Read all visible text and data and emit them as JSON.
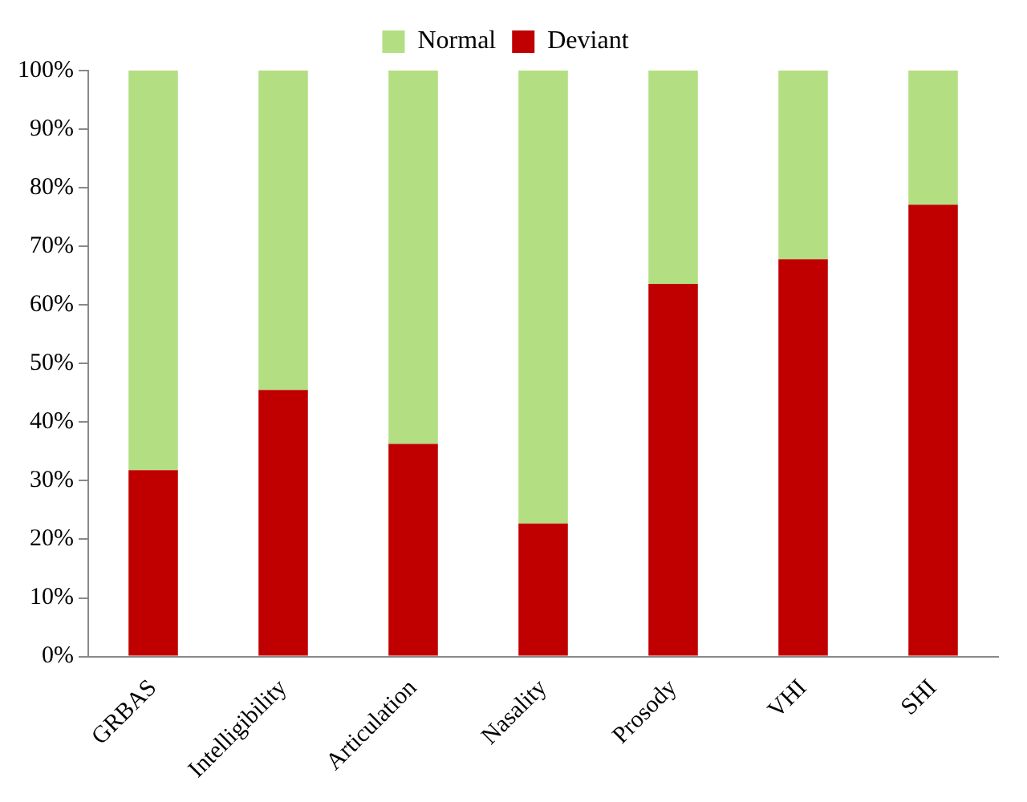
{
  "chart_data": {
    "type": "bar",
    "stacked": true,
    "categories": [
      "GRBAS",
      "Intelligibility",
      "Articulation",
      "Nasality",
      "Prosody",
      "VHI",
      "SHI"
    ],
    "series": [
      {
        "name": "Deviant",
        "color": "#c00000",
        "values": [
          31.8,
          45.5,
          36.3,
          22.7,
          63.6,
          67.8,
          77.1
        ]
      },
      {
        "name": "Normal",
        "color": "#b3de82",
        "values": [
          68.2,
          54.5,
          63.7,
          77.3,
          36.4,
          32.2,
          22.9
        ]
      }
    ],
    "ylim": [
      0,
      100
    ],
    "yticks": [
      {
        "value": 0,
        "label": "0%"
      },
      {
        "value": 10,
        "label": "10%"
      },
      {
        "value": 20,
        "label": "20%"
      },
      {
        "value": 30,
        "label": "30%"
      },
      {
        "value": 40,
        "label": "40%"
      },
      {
        "value": 50,
        "label": "50%"
      },
      {
        "value": 60,
        "label": "60%"
      },
      {
        "value": 70,
        "label": "70%"
      },
      {
        "value": 80,
        "label": "80%"
      },
      {
        "value": 90,
        "label": "90%"
      },
      {
        "value": 100,
        "label": "100%"
      }
    ],
    "grid": false,
    "legend": "top"
  }
}
